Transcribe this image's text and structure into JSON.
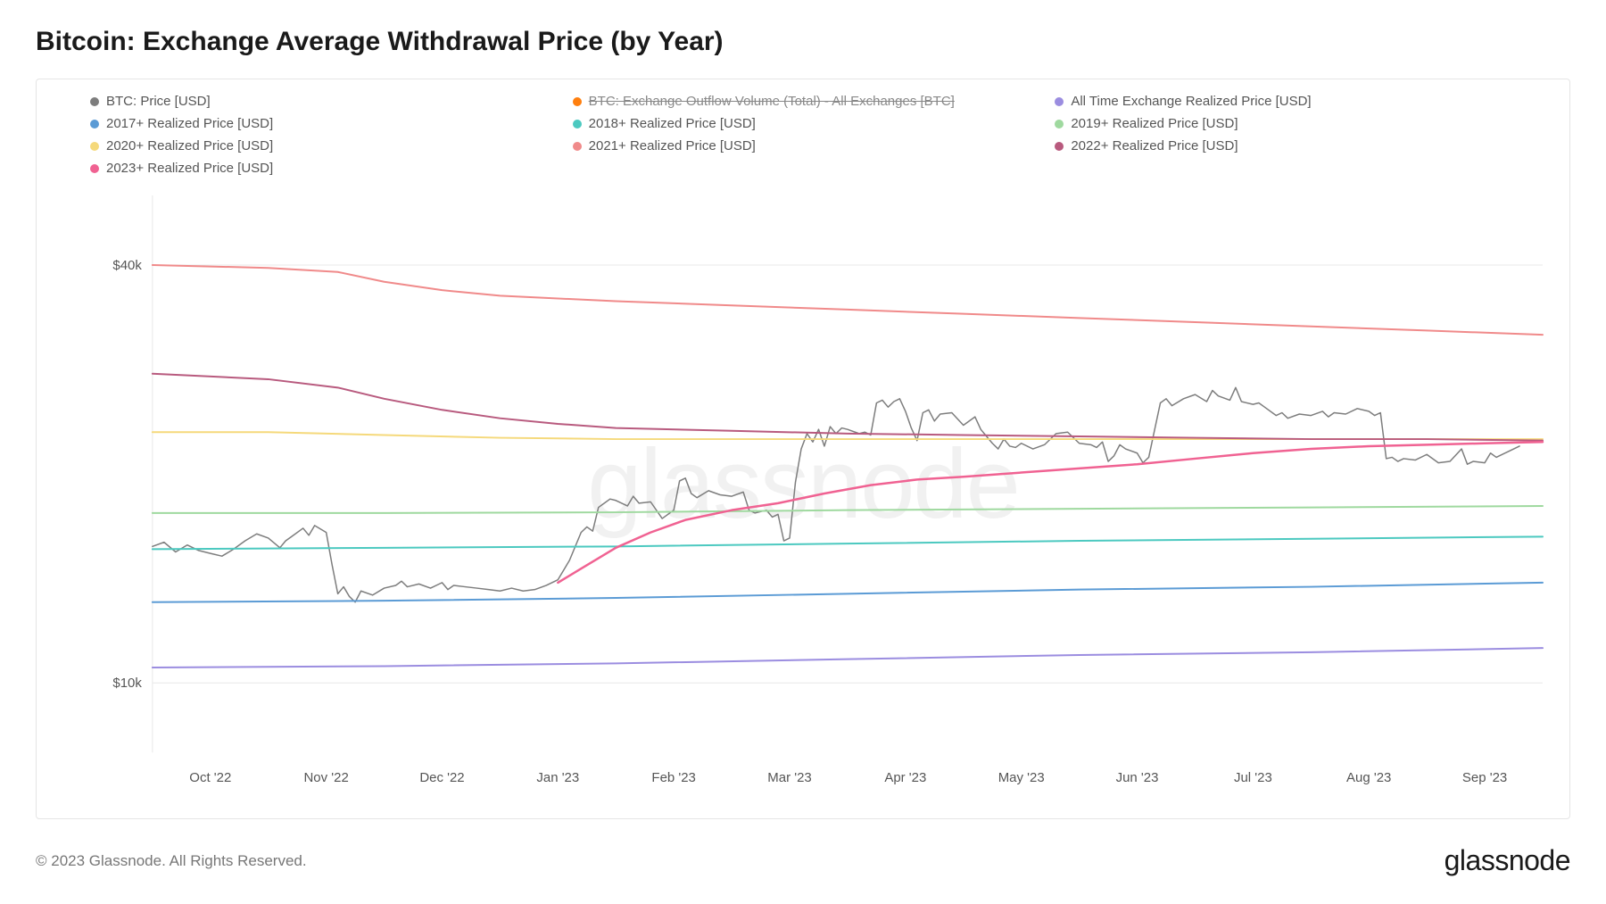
{
  "title": "Bitcoin: Exchange Average Withdrawal Price (by Year)",
  "watermark": "glassnode",
  "footer": {
    "copyright": "© 2023 Glassnode. All Rights Reserved.",
    "brand": "glassnode"
  },
  "chart": {
    "type": "line",
    "background_color": "#ffffff",
    "border_color": "#e5e5e5",
    "grid_color": "#e8e8e8",
    "axis_label_color": "#555555",
    "axis_font_size": 15,
    "xlim": [
      0,
      12
    ],
    "ylim": [
      5000,
      45000
    ],
    "yticks": [
      {
        "value": 10000,
        "label": "$10k"
      },
      {
        "value": 40000,
        "label": "$40k"
      }
    ],
    "xticks": [
      {
        "value": 0.5,
        "label": "Oct '22"
      },
      {
        "value": 1.5,
        "label": "Nov '22"
      },
      {
        "value": 2.5,
        "label": "Dec '22"
      },
      {
        "value": 3.5,
        "label": "Jan '23"
      },
      {
        "value": 4.5,
        "label": "Feb '23"
      },
      {
        "value": 5.5,
        "label": "Mar '23"
      },
      {
        "value": 6.5,
        "label": "Apr '23"
      },
      {
        "value": 7.5,
        "label": "May '23"
      },
      {
        "value": 8.5,
        "label": "Jun '23"
      },
      {
        "value": 9.5,
        "label": "Jul '23"
      },
      {
        "value": 10.5,
        "label": "Aug '23"
      },
      {
        "value": 11.5,
        "label": "Sep '23"
      }
    ],
    "legend": [
      {
        "label": "BTC: Price [USD]",
        "color": "#7d7d7d",
        "key": "btc_price"
      },
      {
        "label": "BTC: Exchange Outflow Volume (Total) - All Exchanges [BTC]",
        "color": "#ff7f0e",
        "key": "outflow",
        "strike": true
      },
      {
        "label": "All Time Exchange Realized Price [USD]",
        "color": "#9b8de0",
        "key": "all_time"
      },
      {
        "label": "2017+ Realized Price [USD]",
        "color": "#5b9bd5",
        "key": "y2017"
      },
      {
        "label": "2018+ Realized Price [USD]",
        "color": "#4cc9c0",
        "key": "y2018"
      },
      {
        "label": "2019+ Realized Price [USD]",
        "color": "#9fd99f",
        "key": "y2019"
      },
      {
        "label": "2020+ Realized Price [USD]",
        "color": "#f5d97b",
        "key": "y2020"
      },
      {
        "label": "2021+ Realized Price [USD]",
        "color": "#f08a8a",
        "key": "y2021"
      },
      {
        "label": "2022+ Realized Price [USD]",
        "color": "#b85a7e",
        "key": "y2022"
      },
      {
        "label": "2023+ Realized Price [USD]",
        "color": "#f06292",
        "key": "y2023"
      }
    ],
    "series": {
      "btc_price": {
        "color": "#7d7d7d",
        "width": 1.5,
        "points": [
          [
            0,
            19800
          ],
          [
            0.1,
            20100
          ],
          [
            0.2,
            19400
          ],
          [
            0.3,
            19900
          ],
          [
            0.4,
            19500
          ],
          [
            0.5,
            19300
          ],
          [
            0.6,
            19100
          ],
          [
            0.7,
            19600
          ],
          [
            0.8,
            20200
          ],
          [
            0.9,
            20700
          ],
          [
            1,
            20400
          ],
          [
            1.1,
            19700
          ],
          [
            1.15,
            20200
          ],
          [
            1.2,
            20500
          ],
          [
            1.3,
            21100
          ],
          [
            1.35,
            20600
          ],
          [
            1.4,
            21300
          ],
          [
            1.5,
            20800
          ],
          [
            1.55,
            18500
          ],
          [
            1.6,
            16400
          ],
          [
            1.65,
            16900
          ],
          [
            1.7,
            16200
          ],
          [
            1.75,
            15800
          ],
          [
            1.8,
            16600
          ],
          [
            1.9,
            16300
          ],
          [
            2,
            16800
          ],
          [
            2.1,
            17000
          ],
          [
            2.15,
            17300
          ],
          [
            2.2,
            16900
          ],
          [
            2.3,
            17100
          ],
          [
            2.4,
            16800
          ],
          [
            2.5,
            17200
          ],
          [
            2.55,
            16700
          ],
          [
            2.6,
            17000
          ],
          [
            2.7,
            16900
          ],
          [
            2.8,
            16800
          ],
          [
            2.9,
            16700
          ],
          [
            3,
            16600
          ],
          [
            3.1,
            16800
          ],
          [
            3.2,
            16600
          ],
          [
            3.3,
            16700
          ],
          [
            3.4,
            17000
          ],
          [
            3.5,
            17400
          ],
          [
            3.6,
            18800
          ],
          [
            3.7,
            20800
          ],
          [
            3.75,
            21200
          ],
          [
            3.8,
            20900
          ],
          [
            3.85,
            22600
          ],
          [
            3.9,
            22900
          ],
          [
            3.95,
            23200
          ],
          [
            4,
            23100
          ],
          [
            4.1,
            22700
          ],
          [
            4.15,
            23400
          ],
          [
            4.2,
            22900
          ],
          [
            4.3,
            23000
          ],
          [
            4.4,
            21800
          ],
          [
            4.5,
            22400
          ],
          [
            4.55,
            24500
          ],
          [
            4.6,
            24700
          ],
          [
            4.65,
            23600
          ],
          [
            4.7,
            23300
          ],
          [
            4.8,
            23800
          ],
          [
            4.9,
            23500
          ],
          [
            5,
            23400
          ],
          [
            5.1,
            23700
          ],
          [
            5.15,
            22400
          ],
          [
            5.2,
            22200
          ],
          [
            5.3,
            22400
          ],
          [
            5.35,
            21900
          ],
          [
            5.4,
            22100
          ],
          [
            5.45,
            20200
          ],
          [
            5.5,
            20400
          ],
          [
            5.55,
            24400
          ],
          [
            5.6,
            26800
          ],
          [
            5.65,
            27900
          ],
          [
            5.7,
            27300
          ],
          [
            5.75,
            28200
          ],
          [
            5.8,
            27000
          ],
          [
            5.85,
            28400
          ],
          [
            5.9,
            27900
          ],
          [
            5.95,
            28300
          ],
          [
            6,
            28200
          ],
          [
            6.1,
            27900
          ],
          [
            6.15,
            28000
          ],
          [
            6.2,
            27800
          ],
          [
            6.25,
            30100
          ],
          [
            6.3,
            30300
          ],
          [
            6.35,
            29800
          ],
          [
            6.4,
            30200
          ],
          [
            6.45,
            30400
          ],
          [
            6.5,
            29500
          ],
          [
            6.55,
            28300
          ],
          [
            6.6,
            27400
          ],
          [
            6.65,
            29400
          ],
          [
            6.7,
            29600
          ],
          [
            6.75,
            28800
          ],
          [
            6.8,
            29300
          ],
          [
            6.9,
            29400
          ],
          [
            7,
            28500
          ],
          [
            7.1,
            29100
          ],
          [
            7.15,
            28200
          ],
          [
            7.2,
            27700
          ],
          [
            7.25,
            27200
          ],
          [
            7.3,
            26800
          ],
          [
            7.35,
            27500
          ],
          [
            7.4,
            27000
          ],
          [
            7.45,
            26900
          ],
          [
            7.5,
            27200
          ],
          [
            7.6,
            26800
          ],
          [
            7.7,
            27100
          ],
          [
            7.8,
            27900
          ],
          [
            7.9,
            28000
          ],
          [
            8,
            27200
          ],
          [
            8.1,
            27100
          ],
          [
            8.15,
            26900
          ],
          [
            8.2,
            27300
          ],
          [
            8.25,
            25900
          ],
          [
            8.3,
            26300
          ],
          [
            8.35,
            27100
          ],
          [
            8.4,
            26800
          ],
          [
            8.5,
            26500
          ],
          [
            8.55,
            25800
          ],
          [
            8.6,
            26200
          ],
          [
            8.7,
            30100
          ],
          [
            8.75,
            30400
          ],
          [
            8.8,
            29900
          ],
          [
            8.9,
            30400
          ],
          [
            9,
            30700
          ],
          [
            9.1,
            30200
          ],
          [
            9.15,
            31000
          ],
          [
            9.2,
            30600
          ],
          [
            9.3,
            30300
          ],
          [
            9.35,
            31200
          ],
          [
            9.4,
            30200
          ],
          [
            9.5,
            30000
          ],
          [
            9.55,
            30100
          ],
          [
            9.6,
            29800
          ],
          [
            9.7,
            29200
          ],
          [
            9.75,
            29400
          ],
          [
            9.8,
            29000
          ],
          [
            9.9,
            29300
          ],
          [
            10,
            29200
          ],
          [
            10.1,
            29500
          ],
          [
            10.15,
            29100
          ],
          [
            10.2,
            29400
          ],
          [
            10.3,
            29300
          ],
          [
            10.4,
            29700
          ],
          [
            10.5,
            29500
          ],
          [
            10.55,
            29200
          ],
          [
            10.6,
            29400
          ],
          [
            10.65,
            26100
          ],
          [
            10.7,
            26200
          ],
          [
            10.75,
            25900
          ],
          [
            10.8,
            26100
          ],
          [
            10.9,
            26000
          ],
          [
            11,
            26400
          ],
          [
            11.1,
            25800
          ],
          [
            11.2,
            25900
          ],
          [
            11.3,
            26800
          ],
          [
            11.35,
            25700
          ],
          [
            11.4,
            25900
          ],
          [
            11.5,
            25800
          ],
          [
            11.55,
            26500
          ],
          [
            11.6,
            26200
          ],
          [
            11.7,
            26600
          ],
          [
            11.8,
            27000
          ]
        ]
      },
      "all_time": {
        "color": "#9b8de0",
        "width": 2,
        "points": [
          [
            0,
            11100
          ],
          [
            2,
            11200
          ],
          [
            4,
            11400
          ],
          [
            6,
            11700
          ],
          [
            8,
            12000
          ],
          [
            10,
            12200
          ],
          [
            12,
            12500
          ]
        ]
      },
      "y2017": {
        "color": "#5b9bd5",
        "width": 2,
        "points": [
          [
            0,
            15800
          ],
          [
            2,
            15900
          ],
          [
            4,
            16100
          ],
          [
            6,
            16400
          ],
          [
            8,
            16700
          ],
          [
            10,
            16900
          ],
          [
            12,
            17200
          ]
        ]
      },
      "y2018": {
        "color": "#4cc9c0",
        "width": 2,
        "points": [
          [
            0,
            19600
          ],
          [
            2,
            19700
          ],
          [
            4,
            19800
          ],
          [
            6,
            20000
          ],
          [
            8,
            20200
          ],
          [
            10,
            20350
          ],
          [
            12,
            20500
          ]
        ]
      },
      "y2019": {
        "color": "#9fd99f",
        "width": 2,
        "points": [
          [
            0,
            22200
          ],
          [
            2,
            22200
          ],
          [
            4,
            22250
          ],
          [
            6,
            22400
          ],
          [
            8,
            22500
          ],
          [
            10,
            22600
          ],
          [
            12,
            22700
          ]
        ]
      },
      "y2020": {
        "color": "#f5d97b",
        "width": 2,
        "points": [
          [
            0,
            28000
          ],
          [
            1,
            28000
          ],
          [
            2,
            27800
          ],
          [
            3,
            27600
          ],
          [
            4,
            27500
          ],
          [
            6,
            27500
          ],
          [
            8,
            27500
          ],
          [
            10,
            27500
          ],
          [
            12,
            27500
          ]
        ]
      },
      "y2021": {
        "color": "#f08a8a",
        "width": 2,
        "points": [
          [
            0,
            40000
          ],
          [
            1,
            39800
          ],
          [
            1.6,
            39500
          ],
          [
            2,
            38800
          ],
          [
            2.5,
            38200
          ],
          [
            3,
            37800
          ],
          [
            4,
            37400
          ],
          [
            5,
            37100
          ],
          [
            6,
            36800
          ],
          [
            7,
            36500
          ],
          [
            8,
            36200
          ],
          [
            9,
            35900
          ],
          [
            10,
            35600
          ],
          [
            11,
            35300
          ],
          [
            12,
            35000
          ]
        ]
      },
      "y2022": {
        "color": "#b85a7e",
        "width": 2,
        "points": [
          [
            0,
            32200
          ],
          [
            1,
            31800
          ],
          [
            1.6,
            31200
          ],
          [
            2,
            30400
          ],
          [
            2.5,
            29600
          ],
          [
            3,
            29000
          ],
          [
            3.5,
            28600
          ],
          [
            4,
            28300
          ],
          [
            5,
            28100
          ],
          [
            6,
            27900
          ],
          [
            7,
            27800
          ],
          [
            8,
            27700
          ],
          [
            9,
            27600
          ],
          [
            10,
            27500
          ],
          [
            11,
            27500
          ],
          [
            12,
            27400
          ]
        ]
      },
      "y2023": {
        "color": "#f06292",
        "width": 2.5,
        "points": [
          [
            3.5,
            17200
          ],
          [
            3.7,
            18200
          ],
          [
            4,
            19700
          ],
          [
            4.3,
            20800
          ],
          [
            4.6,
            21700
          ],
          [
            5,
            22400
          ],
          [
            5.4,
            22900
          ],
          [
            5.8,
            23600
          ],
          [
            6.2,
            24200
          ],
          [
            6.6,
            24600
          ],
          [
            7,
            24800
          ],
          [
            7.5,
            25100
          ],
          [
            8,
            25400
          ],
          [
            8.5,
            25700
          ],
          [
            9,
            26100
          ],
          [
            9.5,
            26500
          ],
          [
            10,
            26800
          ],
          [
            10.5,
            27000
          ],
          [
            11,
            27100
          ],
          [
            11.5,
            27200
          ],
          [
            12,
            27300
          ]
        ]
      }
    }
  }
}
